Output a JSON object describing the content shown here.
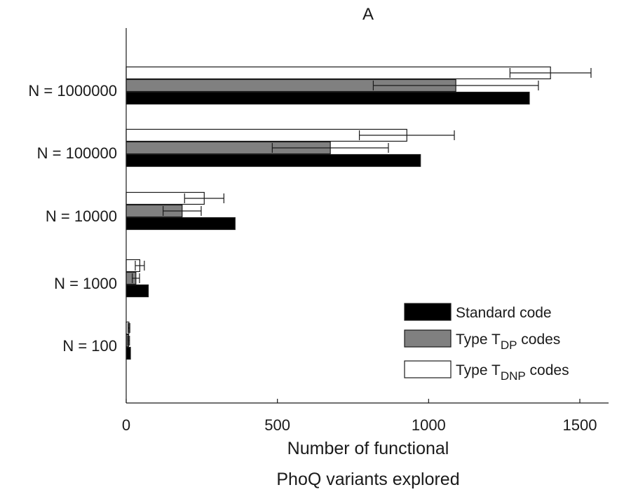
{
  "chart_data": {
    "type": "bar",
    "orientation": "horizontal",
    "title": "A",
    "xlabel": [
      "Number of functional",
      "PhoQ variants explored"
    ],
    "ylabel": "",
    "xlim": [
      0,
      1600
    ],
    "xticks": [
      0,
      500,
      1000,
      1500
    ],
    "xtick_labels": [
      "0",
      "500",
      "1000",
      "1500"
    ],
    "categories": [
      "N = 100",
      "N = 1000",
      "N = 10000",
      "N = 100000",
      "N = 1000000"
    ],
    "series": [
      {
        "name": "Standard code",
        "color": "#000000",
        "values": [
          14,
          73,
          360,
          973,
          1333
        ],
        "error": null
      },
      {
        "name": "Type T_DP codes",
        "name_base": "Type T",
        "name_sub": "DP",
        "name_suffix": " codes",
        "color": "#808080",
        "values": [
          8,
          32,
          185,
          675,
          1090
        ],
        "error": [
          3,
          12,
          63,
          192,
          273
        ]
      },
      {
        "name": "Type T_DNP codes",
        "name_base": "Type T",
        "name_sub": "DNP",
        "name_suffix": " codes",
        "color": "#ffffff",
        "values": [
          9,
          45,
          258,
          928,
          1403
        ],
        "error": [
          3,
          15,
          65,
          157,
          134
        ]
      }
    ],
    "legend_position": "bottom-right",
    "grid": false
  }
}
